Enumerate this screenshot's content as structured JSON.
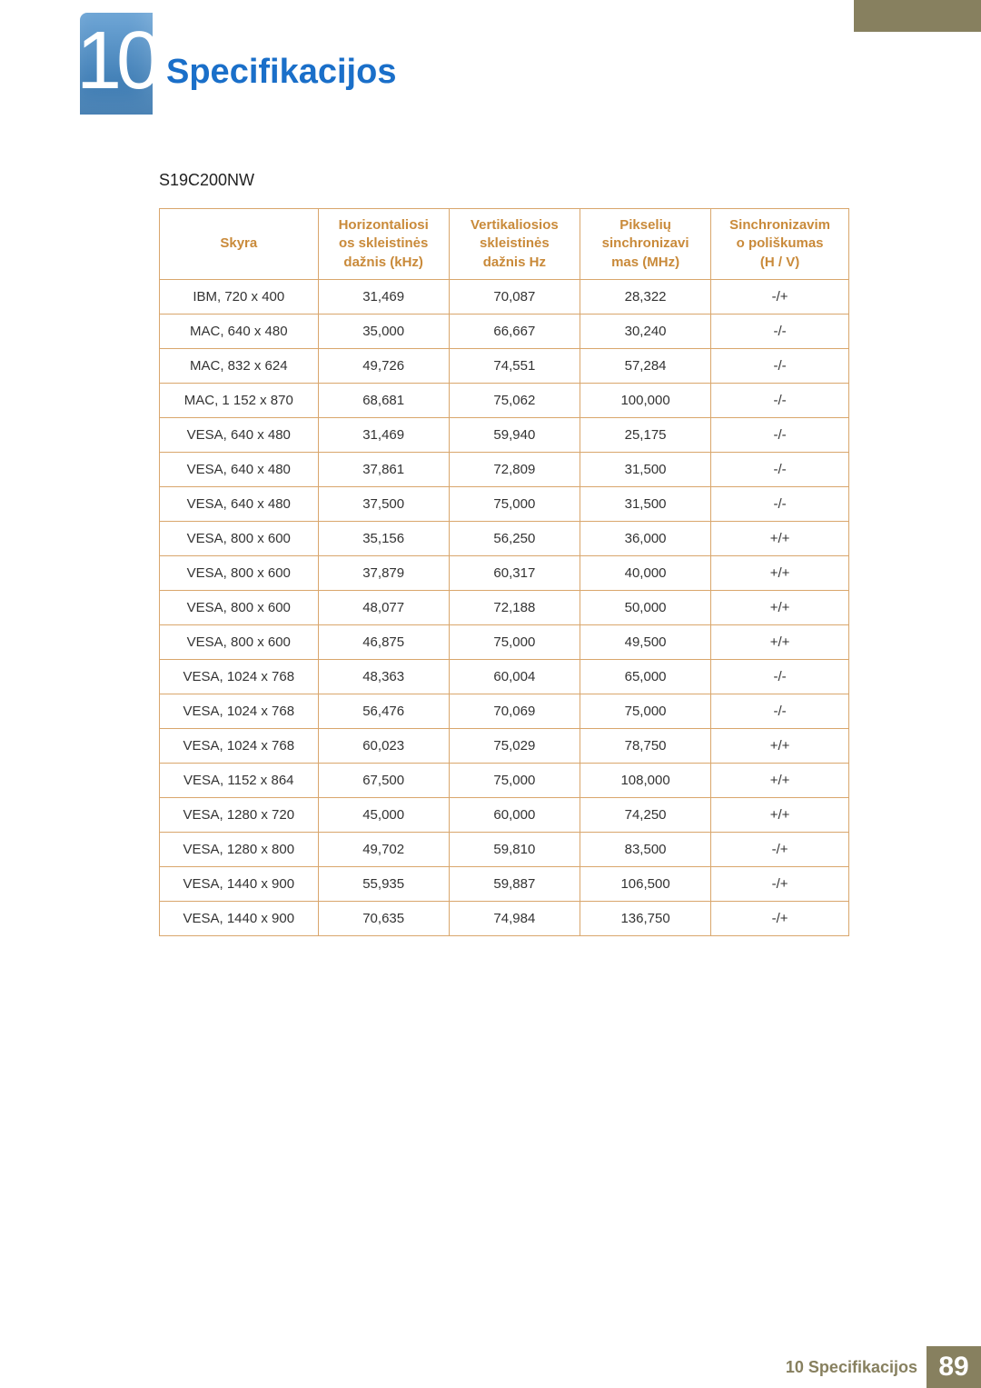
{
  "chapter": {
    "number": "10",
    "title": "Specifikacijos"
  },
  "model": "S19C200NW",
  "table": {
    "type": "table",
    "border_color": "#d9a66c",
    "header_color": "#c98a3a",
    "text_color": "#333333",
    "font_size": 15,
    "header_font_size": 15,
    "columns": [
      {
        "key": "skyra",
        "label": "Skyra",
        "width": "23%"
      },
      {
        "key": "h",
        "label": "Horizontaliosios skleistinės dažnis (kHz)",
        "width": "19%"
      },
      {
        "key": "v",
        "label": "Vertikaliosios skleistinės dažnis Hz",
        "width": "19%"
      },
      {
        "key": "p",
        "label": "Pikselių sinchronizavimas (MHz)",
        "width": "19%"
      },
      {
        "key": "s",
        "label": "Sinchronizavimo poliškumas (H / V)",
        "width": "20%"
      }
    ],
    "header_lines": {
      "skyra": [
        "Skyra"
      ],
      "h": [
        "Horizontaliosi",
        "os skleistinės",
        "dažnis (kHz)"
      ],
      "v": [
        "Vertikaliosios",
        "skleistinės",
        "dažnis Hz"
      ],
      "p": [
        "Pikselių",
        "sinchronizavi",
        "mas (MHz)"
      ],
      "s": [
        "Sinchronizavim",
        "o poliškumas",
        "(H / V)"
      ]
    },
    "rows": [
      [
        "IBM, 720 x 400",
        "31,469",
        "70,087",
        "28,322",
        "-/+"
      ],
      [
        "MAC, 640 x 480",
        "35,000",
        "66,667",
        "30,240",
        "-/-"
      ],
      [
        "MAC, 832 x 624",
        "49,726",
        "74,551",
        "57,284",
        "-/-"
      ],
      [
        "MAC, 1 152 x 870",
        "68,681",
        "75,062",
        "100,000",
        "-/-"
      ],
      [
        "VESA, 640 x 480",
        "31,469",
        "59,940",
        "25,175",
        "-/-"
      ],
      [
        "VESA, 640 x 480",
        "37,861",
        "72,809",
        "31,500",
        "-/-"
      ],
      [
        "VESA, 640 x 480",
        "37,500",
        "75,000",
        "31,500",
        "-/-"
      ],
      [
        "VESA, 800 x 600",
        "35,156",
        "56,250",
        "36,000",
        "+/+"
      ],
      [
        "VESA, 800 x 600",
        "37,879",
        "60,317",
        "40,000",
        "+/+"
      ],
      [
        "VESA, 800 x 600",
        "48,077",
        "72,188",
        "50,000",
        "+/+"
      ],
      [
        "VESA, 800 x 600",
        "46,875",
        "75,000",
        "49,500",
        "+/+"
      ],
      [
        "VESA, 1024 x 768",
        "48,363",
        "60,004",
        "65,000",
        "-/-"
      ],
      [
        "VESA, 1024 x 768",
        "56,476",
        "70,069",
        "75,000",
        "-/-"
      ],
      [
        "VESA, 1024 x 768",
        "60,023",
        "75,029",
        "78,750",
        "+/+"
      ],
      [
        "VESA, 1152 x 864",
        "67,500",
        "75,000",
        "108,000",
        "+/+"
      ],
      [
        "VESA, 1280 x 720",
        "45,000",
        "60,000",
        "74,250",
        "+/+"
      ],
      [
        "VESA, 1280 x 800",
        "49,702",
        "59,810",
        "83,500",
        "-/+"
      ],
      [
        "VESA, 1440 x 900",
        "55,935",
        "59,887",
        "106,500",
        "-/+"
      ],
      [
        "VESA, 1440 x 900",
        "70,635",
        "74,984",
        "136,750",
        "-/+"
      ]
    ]
  },
  "footer": {
    "section": "10 Specifikacijos",
    "page": "89"
  },
  "colors": {
    "accent_bar": "#87805f",
    "badge_gradient_top": "#6fa6d6",
    "badge_gradient_bottom": "#2d6ea8",
    "title_color": "#1a6fc9",
    "table_border": "#d9a66c",
    "header_text": "#c98a3a",
    "body_text": "#333333",
    "page_bg": "#ffffff"
  }
}
